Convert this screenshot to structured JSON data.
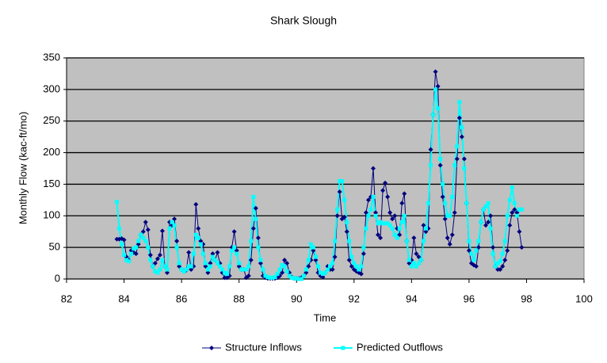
{
  "chart_data": {
    "type": "line",
    "title": "Shark Slough",
    "x_label": "Time",
    "y_label": "Monthly Flow (kac-ft/mo)",
    "xlim": [
      82,
      100
    ],
    "xticks": [
      82,
      84,
      86,
      88,
      90,
      92,
      94,
      96,
      98,
      100
    ],
    "ylim": [
      0,
      350
    ],
    "yticks": [
      0,
      50,
      100,
      150,
      200,
      250,
      300,
      350
    ],
    "grid": true,
    "legend": "bottom",
    "x": [
      83.75,
      83.833,
      83.917,
      84,
      84.083,
      84.167,
      84.25,
      84.333,
      84.417,
      84.5,
      84.583,
      84.667,
      84.75,
      84.833,
      84.917,
      85,
      85.083,
      85.167,
      85.25,
      85.333,
      85.417,
      85.5,
      85.583,
      85.667,
      85.75,
      85.833,
      85.917,
      86,
      86.083,
      86.167,
      86.25,
      86.333,
      86.417,
      86.5,
      86.583,
      86.667,
      86.75,
      86.833,
      86.917,
      87,
      87.083,
      87.167,
      87.25,
      87.333,
      87.417,
      87.5,
      87.583,
      87.667,
      87.75,
      87.833,
      87.917,
      88,
      88.083,
      88.167,
      88.25,
      88.333,
      88.417,
      88.5,
      88.583,
      88.667,
      88.75,
      88.833,
      88.917,
      89,
      89.083,
      89.167,
      89.25,
      89.333,
      89.417,
      89.5,
      89.583,
      89.667,
      89.75,
      89.833,
      89.917,
      90,
      90.083,
      90.167,
      90.25,
      90.333,
      90.417,
      90.5,
      90.583,
      90.667,
      90.75,
      90.833,
      90.917,
      91,
      91.083,
      91.167,
      91.25,
      91.333,
      91.417,
      91.5,
      91.583,
      91.667,
      91.75,
      91.833,
      91.917,
      92,
      92.083,
      92.167,
      92.25,
      92.333,
      92.417,
      92.5,
      92.583,
      92.667,
      92.75,
      92.833,
      92.917,
      93,
      93.083,
      93.167,
      93.25,
      93.333,
      93.417,
      93.5,
      93.583,
      93.667,
      93.75,
      93.833,
      93.917,
      94,
      94.083,
      94.167,
      94.25,
      94.333,
      94.417,
      94.5,
      94.583,
      94.667,
      94.75,
      94.833,
      94.917,
      95,
      95.083,
      95.167,
      95.25,
      95.333,
      95.417,
      95.5,
      95.583,
      95.667,
      95.75,
      95.833,
      95.917,
      96,
      96.083,
      96.167,
      96.25,
      96.333,
      96.417,
      96.5,
      96.583,
      96.667,
      96.75,
      96.833,
      96.917,
      97,
      97.083,
      97.167,
      97.25,
      97.333,
      97.417,
      97.5,
      97.583,
      97.667,
      97.75,
      97.833
    ],
    "series": [
      {
        "name": "Structure Inflows",
        "color": "#000080",
        "marker": "diamond",
        "values": [
          63,
          63,
          64,
          62,
          35,
          30,
          45,
          42,
          40,
          55,
          70,
          75,
          90,
          78,
          38,
          20,
          25,
          32,
          38,
          76,
          20,
          10,
          90,
          85,
          95,
          60,
          20,
          15,
          12,
          14,
          42,
          15,
          20,
          118,
          80,
          60,
          55,
          20,
          10,
          25,
          40,
          30,
          42,
          25,
          10,
          2,
          2,
          5,
          50,
          75,
          45,
          20,
          15,
          15,
          2,
          5,
          30,
          80,
          112,
          65,
          25,
          5,
          2,
          1,
          1,
          1,
          1,
          2,
          5,
          10,
          30,
          25,
          10,
          3,
          1,
          1,
          1,
          2,
          5,
          10,
          20,
          30,
          45,
          30,
          10,
          5,
          3,
          10,
          20,
          15,
          15,
          35,
          100,
          138,
          95,
          98,
          75,
          30,
          20,
          15,
          12,
          10,
          8,
          40,
          105,
          125,
          130,
          175,
          105,
          70,
          65,
          140,
          152,
          130,
          105,
          95,
          100,
          80,
          70,
          120,
          135,
          60,
          25,
          30,
          65,
          40,
          35,
          30,
          85,
          75,
          80,
          205,
          260,
          328,
          305,
          180,
          130,
          95,
          65,
          55,
          70,
          105,
          190,
          255,
          225,
          190,
          120,
          45,
          25,
          22,
          20,
          50,
          90,
          110,
          85,
          90,
          100,
          50,
          20,
          15,
          15,
          20,
          30,
          45,
          85,
          105,
          110,
          105,
          75,
          50
        ]
      },
      {
        "name": "Predicted Outflows",
        "color": "#00ffff",
        "marker": "square",
        "values": [
          122,
          80,
          55,
          38,
          30,
          28,
          40,
          48,
          50,
          60,
          70,
          65,
          60,
          50,
          30,
          20,
          12,
          10,
          15,
          30,
          20,
          15,
          80,
          90,
          85,
          50,
          25,
          15,
          12,
          15,
          20,
          20,
          40,
          70,
          65,
          55,
          40,
          25,
          15,
          20,
          35,
          30,
          25,
          20,
          15,
          10,
          8,
          20,
          45,
          50,
          40,
          25,
          15,
          15,
          15,
          20,
          60,
          130,
          95,
          50,
          30,
          15,
          5,
          3,
          2,
          2,
          3,
          8,
          15,
          22,
          20,
          12,
          5,
          2,
          1,
          1,
          0,
          0,
          5,
          15,
          30,
          55,
          50,
          35,
          20,
          10,
          8,
          10,
          15,
          20,
          25,
          60,
          110,
          155,
          155,
          125,
          90,
          60,
          35,
          25,
          20,
          15,
          20,
          50,
          80,
          100,
          110,
          130,
          100,
          88,
          90,
          88,
          88,
          88,
          85,
          80,
          70,
          65,
          80,
          90,
          100,
          60,
          30,
          20,
          25,
          20,
          25,
          30,
          60,
          80,
          120,
          180,
          260,
          300,
          270,
          190,
          150,
          120,
          100,
          100,
          130,
          180,
          210,
          280,
          240,
          175,
          120,
          60,
          40,
          30,
          45,
          60,
          90,
          110,
          115,
          120,
          80,
          40,
          20,
          25,
          28,
          40,
          60,
          100,
          125,
          145,
          120,
          100,
          110,
          110
        ]
      }
    ]
  }
}
